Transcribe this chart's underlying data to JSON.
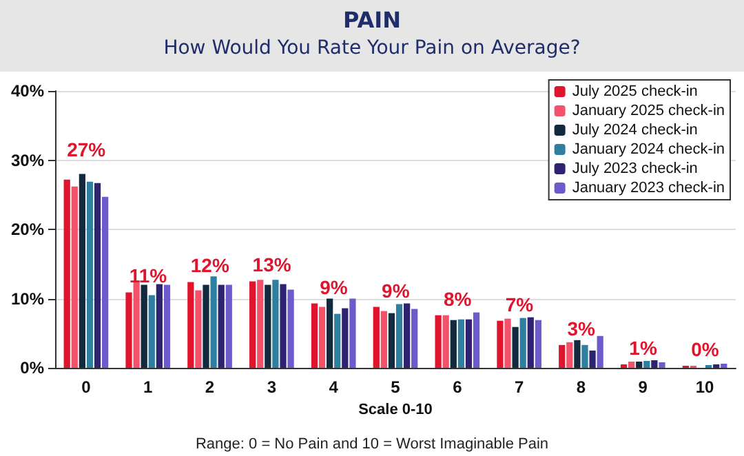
{
  "chart_data": {
    "type": "bar",
    "title": "PAIN",
    "subtitle": "How Would You Rate Your Pain on Average?",
    "xlabel": "Scale 0-10",
    "annotations": [
      "Range: 0 = No Pain and 10 = Worst Imaginable Pain"
    ],
    "categories": [
      "0",
      "1",
      "2",
      "3",
      "4",
      "5",
      "6",
      "7",
      "8",
      "9",
      "10"
    ],
    "series": [
      {
        "name": "July 2025 check-in",
        "color": "#e0142c",
        "values": [
          27.2,
          10.9,
          12.4,
          12.5,
          9.3,
          8.8,
          7.6,
          6.8,
          3.3,
          0.5,
          0.3
        ],
        "value_labels": [
          "27%",
          "11%",
          "12%",
          "13%",
          "9%",
          "9%",
          "8%",
          "7%",
          "3%",
          "1%",
          "0%"
        ]
      },
      {
        "name": "January 2025 check-in",
        "color": "#f4516a",
        "values": [
          26.2,
          12.6,
          11.2,
          12.7,
          8.8,
          8.2,
          7.6,
          7.1,
          3.7,
          0.9,
          0.3
        ]
      },
      {
        "name": "July 2024 check-in",
        "color": "#13293d",
        "values": [
          28.0,
          12.0,
          12.0,
          12.0,
          10.0,
          7.9,
          6.9,
          5.9,
          4.0,
          0.9,
          null
        ]
      },
      {
        "name": "January 2024 check-in",
        "color": "#2f7fa0",
        "values": [
          26.9,
          10.5,
          13.2,
          12.7,
          7.8,
          9.2,
          7.0,
          7.2,
          3.3,
          1.0,
          0.4
        ]
      },
      {
        "name": "July 2023 check-in",
        "color": "#2e2370",
        "values": [
          26.7,
          12.1,
          12.0,
          12.1,
          8.6,
          9.3,
          7.0,
          7.3,
          2.5,
          1.1,
          0.5
        ]
      },
      {
        "name": "January 2023 check-in",
        "color": "#6f5acb",
        "values": [
          24.7,
          12.0,
          12.0,
          11.3,
          10.0,
          8.5,
          8.0,
          6.9,
          4.6,
          0.8,
          0.6
        ]
      }
    ],
    "ylim": [
      0,
      40
    ],
    "yticks": [
      {
        "value": 0,
        "label": "0%"
      },
      {
        "value": 10,
        "label": "10%"
      },
      {
        "value": 20,
        "label": "20%"
      },
      {
        "value": 30,
        "label": "30%"
      },
      {
        "value": 40,
        "label": "40%"
      }
    ],
    "grid": "y",
    "legend": "top right"
  }
}
